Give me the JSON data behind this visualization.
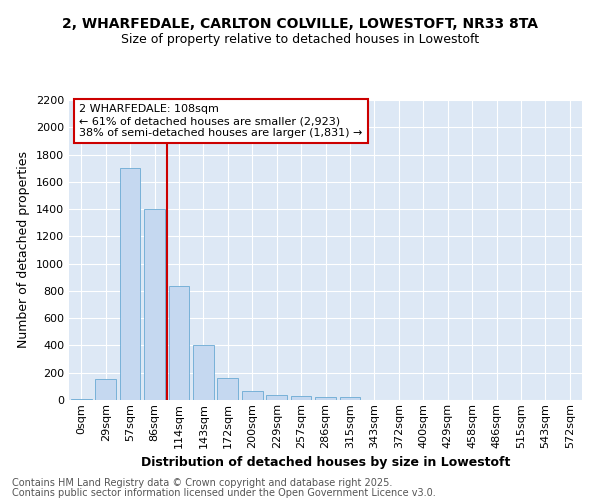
{
  "title1": "2, WHARFEDALE, CARLTON COLVILLE, LOWESTOFT, NR33 8TA",
  "title2": "Size of property relative to detached houses in Lowestoft",
  "xlabel": "Distribution of detached houses by size in Lowestoft",
  "ylabel": "Number of detached properties",
  "bar_color": "#c5d8f0",
  "bar_edge_color": "#6aaad4",
  "background_color": "#dde8f5",
  "grid_color": "#ffffff",
  "fig_bg_color": "#ffffff",
  "categories": [
    "0sqm",
    "29sqm",
    "57sqm",
    "86sqm",
    "114sqm",
    "143sqm",
    "172sqm",
    "200sqm",
    "229sqm",
    "257sqm",
    "286sqm",
    "315sqm",
    "343sqm",
    "372sqm",
    "400sqm",
    "429sqm",
    "458sqm",
    "486sqm",
    "515sqm",
    "543sqm",
    "572sqm"
  ],
  "values": [
    10,
    155,
    1700,
    1400,
    835,
    405,
    165,
    65,
    40,
    30,
    25,
    20,
    2,
    2,
    1,
    1,
    1,
    0,
    0,
    0,
    0
  ],
  "ylim": [
    0,
    2200
  ],
  "yticks": [
    0,
    200,
    400,
    600,
    800,
    1000,
    1200,
    1400,
    1600,
    1800,
    2000,
    2200
  ],
  "property_label": "2 WHARFEDALE: 108sqm",
  "annotation_line1": "← 61% of detached houses are smaller (2,923)",
  "annotation_line2": "38% of semi-detached houses are larger (1,831) →",
  "vline_x": 3.5,
  "vline_color": "#cc0000",
  "annotation_box_color": "#cc0000",
  "footer_line1": "Contains HM Land Registry data © Crown copyright and database right 2025.",
  "footer_line2": "Contains public sector information licensed under the Open Government Licence v3.0.",
  "title_fontsize": 10,
  "subtitle_fontsize": 9,
  "axis_label_fontsize": 9,
  "tick_fontsize": 8,
  "annotation_fontsize": 8,
  "footer_fontsize": 7
}
